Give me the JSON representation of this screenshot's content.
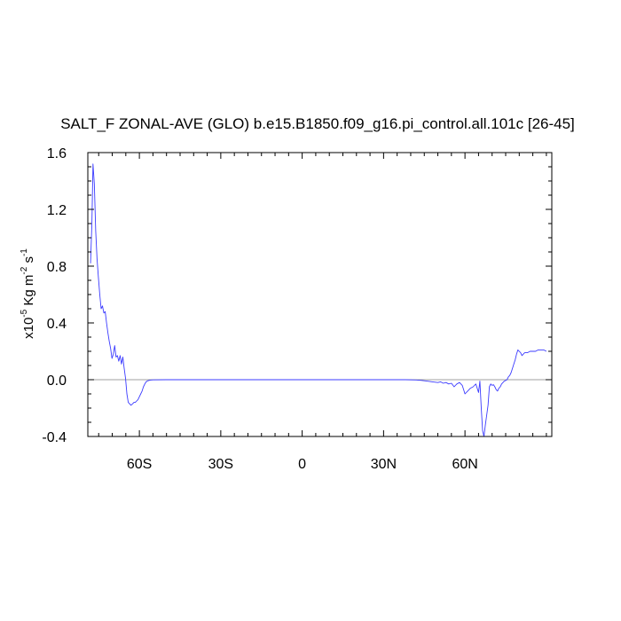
{
  "chart_data": {
    "type": "line",
    "title": "SALT_F ZONAL-AVE (GLO) b.e15.B1850.f09_g16.pi_control.all.101c [26-45]",
    "ylabel": {
      "base": "x10",
      "exp": "-5",
      "unit1": " Kg m",
      "unit1_exp": "-2",
      "unit2": " s",
      "unit2_exp": "-1"
    },
    "xlim": [
      -79,
      92
    ],
    "ylim": [
      -0.4,
      1.6
    ],
    "x_ticks": [
      {
        "value": -60,
        "label": "60S"
      },
      {
        "value": -30,
        "label": "30S"
      },
      {
        "value": 0,
        "label": "0"
      },
      {
        "value": 30,
        "label": "30N"
      },
      {
        "value": 60,
        "label": "60N"
      }
    ],
    "y_ticks": [
      {
        "value": -0.4,
        "label": "-0.4"
      },
      {
        "value": 0.0,
        "label": "0.0"
      },
      {
        "value": 0.4,
        "label": "0.4"
      },
      {
        "value": 0.8,
        "label": "0.8"
      },
      {
        "value": 1.2,
        "label": "1.2"
      },
      {
        "value": 1.6,
        "label": "1.6"
      }
    ],
    "grid": false,
    "reference_line": {
      "y": 0.0,
      "color": "#a0a0a0"
    },
    "series": [
      {
        "color": "#3b3bff",
        "points": [
          [
            -78,
            0.82
          ],
          [
            -77.5,
            1.1
          ],
          [
            -77.1,
            1.52
          ],
          [
            -76.6,
            1.38
          ],
          [
            -76.1,
            1.05
          ],
          [
            -75.6,
            0.85
          ],
          [
            -75.1,
            0.72
          ],
          [
            -74.6,
            0.6
          ],
          [
            -74.1,
            0.5
          ],
          [
            -73.6,
            0.52
          ],
          [
            -73.1,
            0.47
          ],
          [
            -72.6,
            0.48
          ],
          [
            -72.1,
            0.4
          ],
          [
            -71.6,
            0.33
          ],
          [
            -71.1,
            0.27
          ],
          [
            -70.6,
            0.22
          ],
          [
            -70.1,
            0.15
          ],
          [
            -69.6,
            0.18
          ],
          [
            -69.1,
            0.24
          ],
          [
            -68.6,
            0.16
          ],
          [
            -68.1,
            0.17
          ],
          [
            -67.6,
            0.13
          ],
          [
            -67.1,
            0.17
          ],
          [
            -66.6,
            0.11
          ],
          [
            -66.1,
            0.16
          ],
          [
            -65.6,
            0.08
          ],
          [
            -65.1,
            0.01
          ],
          [
            -64.6,
            -0.1
          ],
          [
            -64.1,
            -0.16
          ],
          [
            -63.6,
            -0.17
          ],
          [
            -63.1,
            -0.18
          ],
          [
            -62.5,
            -0.17
          ],
          [
            -62.0,
            -0.16
          ],
          [
            -61.5,
            -0.16
          ],
          [
            -61.0,
            -0.15
          ],
          [
            -60.5,
            -0.14
          ],
          [
            -60.0,
            -0.12
          ],
          [
            -59.5,
            -0.1
          ],
          [
            -59.0,
            -0.08
          ],
          [
            -58.5,
            -0.05
          ],
          [
            -58.0,
            -0.03
          ],
          [
            -57.5,
            -0.015
          ],
          [
            -57.0,
            -0.008
          ],
          [
            -56.0,
            -0.003
          ],
          [
            -55.0,
            -0.001
          ],
          [
            -50.0,
            0.0
          ],
          [
            -40.0,
            0.0
          ],
          [
            -30.0,
            0.0
          ],
          [
            -20.0,
            0.0
          ],
          [
            -10.0,
            0.0
          ],
          [
            0.0,
            0.0
          ],
          [
            10.0,
            0.0
          ],
          [
            20.0,
            0.0
          ],
          [
            30.0,
            0.0
          ],
          [
            38.0,
            0.0
          ],
          [
            42.0,
            -0.002
          ],
          [
            44.0,
            -0.005
          ],
          [
            46.0,
            -0.01
          ],
          [
            48.0,
            -0.015
          ],
          [
            50.0,
            -0.02
          ],
          [
            51.0,
            -0.015
          ],
          [
            52.0,
            -0.025
          ],
          [
            53.0,
            -0.02
          ],
          [
            54.0,
            -0.03
          ],
          [
            55.0,
            -0.025
          ],
          [
            56.0,
            -0.05
          ],
          [
            57.0,
            -0.03
          ],
          [
            58.0,
            -0.02
          ],
          [
            59.0,
            -0.04
          ],
          [
            60.0,
            -0.1
          ],
          [
            61.0,
            -0.08
          ],
          [
            62.0,
            -0.06
          ],
          [
            63.0,
            -0.05
          ],
          [
            64.0,
            -0.03
          ],
          [
            65.0,
            -0.09
          ],
          [
            65.5,
            -0.01
          ],
          [
            66.0,
            -0.2
          ],
          [
            66.5,
            -0.36
          ],
          [
            67.0,
            -0.4
          ],
          [
            67.5,
            -0.32
          ],
          [
            68.0,
            -0.25
          ],
          [
            68.5,
            -0.18
          ],
          [
            69.0,
            -0.05
          ],
          [
            69.5,
            -0.03
          ],
          [
            70.0,
            -0.04
          ],
          [
            70.5,
            -0.035
          ],
          [
            71.0,
            -0.05
          ],
          [
            71.5,
            -0.07
          ],
          [
            72.0,
            -0.08
          ],
          [
            72.5,
            -0.06
          ],
          [
            73.0,
            -0.05
          ],
          [
            73.5,
            -0.03
          ],
          [
            74.0,
            -0.02
          ],
          [
            74.5,
            -0.01
          ],
          [
            75.0,
            -0.005
          ],
          [
            75.5,
            0.0
          ],
          [
            76.0,
            0.02
          ],
          [
            76.5,
            0.03
          ],
          [
            77.0,
            0.05
          ],
          [
            77.5,
            0.08
          ],
          [
            78.0,
            0.11
          ],
          [
            78.5,
            0.14
          ],
          [
            79.0,
            0.18
          ],
          [
            79.5,
            0.21
          ],
          [
            80.0,
            0.2
          ],
          [
            80.5,
            0.19
          ],
          [
            81.0,
            0.17
          ],
          [
            81.5,
            0.18
          ],
          [
            82.0,
            0.19
          ],
          [
            83.0,
            0.19
          ],
          [
            84.0,
            0.2
          ],
          [
            85.0,
            0.2
          ],
          [
            86.0,
            0.2
          ],
          [
            87.0,
            0.21
          ],
          [
            88.0,
            0.21
          ],
          [
            89.0,
            0.21
          ],
          [
            90.0,
            0.2
          ]
        ]
      }
    ]
  }
}
